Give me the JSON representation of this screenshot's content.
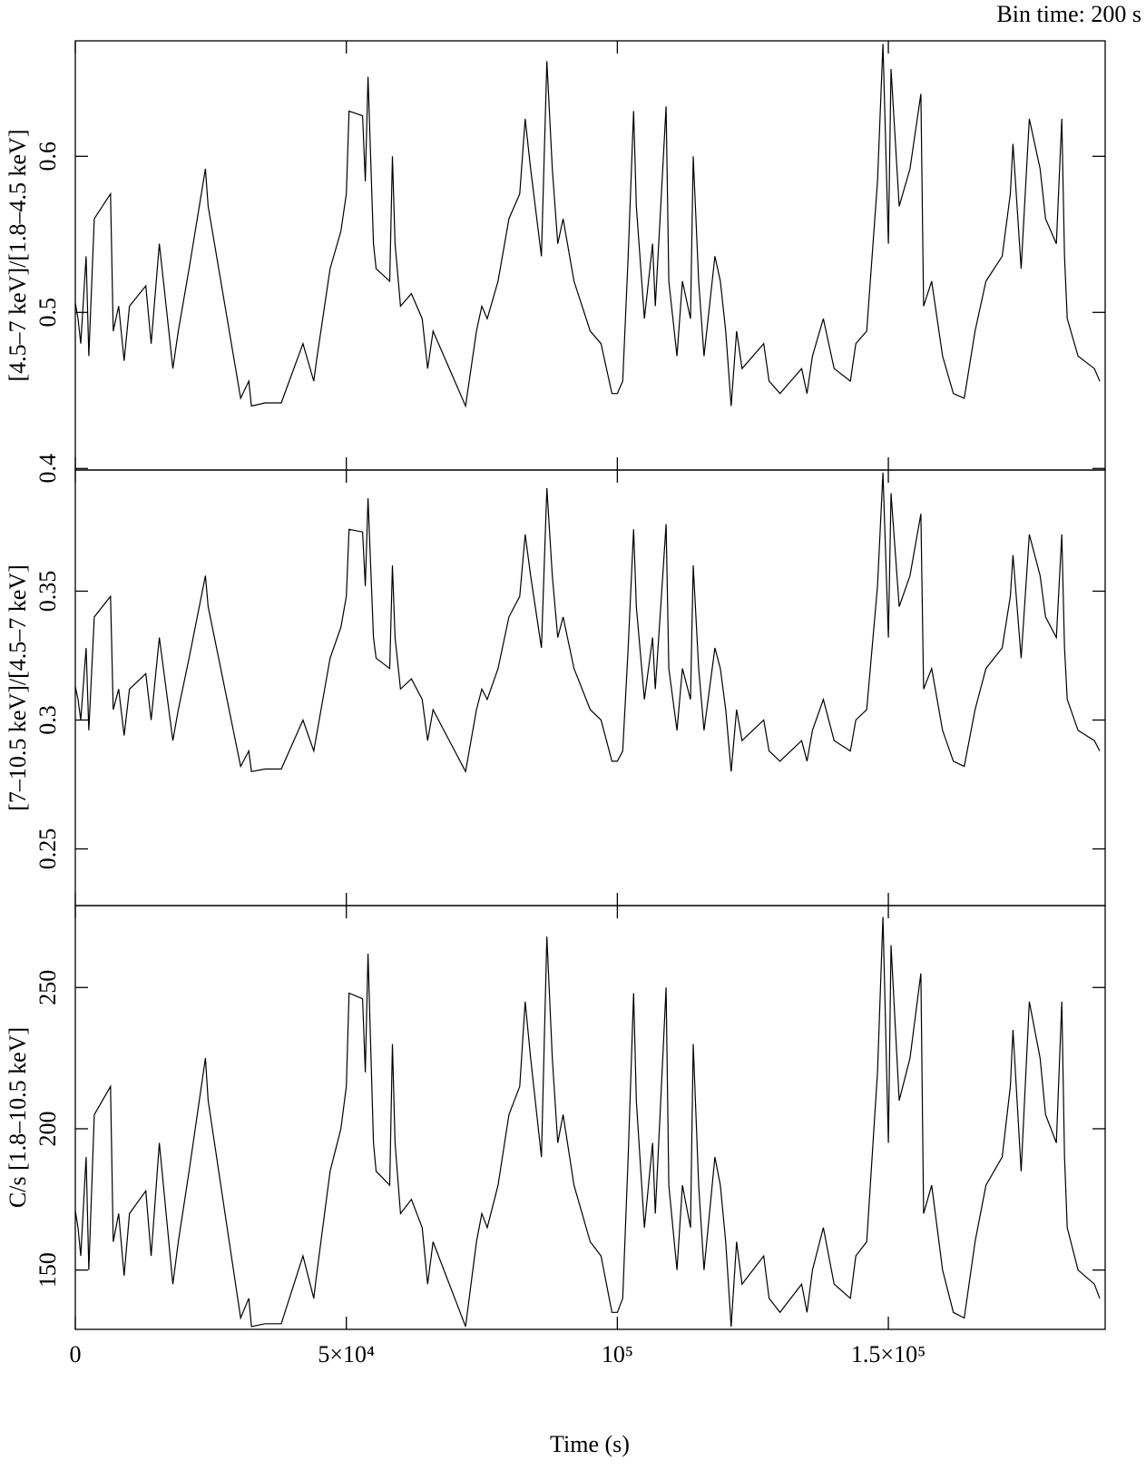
{
  "bin_time": "Bin time: 200 s",
  "chart_data": [
    {
      "type": "line",
      "ylabel": "[4.5–7 keV]/[1.8–4.5 keV]",
      "color": "#000000",
      "xlim": [
        0,
        190000
      ],
      "ylim": [
        0.399,
        0.674
      ],
      "yticks": [
        0.4,
        0.5,
        0.6
      ],
      "x": [
        0,
        500,
        1000,
        2000,
        2500,
        3500,
        6500,
        7000,
        8000,
        9000,
        10000,
        13000,
        14000,
        15500,
        16500,
        18000,
        19000,
        21000,
        24000,
        24500,
        30500,
        32000,
        32500,
        35000,
        38000,
        42000,
        44000,
        44500,
        47000,
        49000,
        50000,
        50500,
        53000,
        53500,
        54000,
        55000,
        55500,
        58000,
        58500,
        59000,
        60000,
        62000,
        64000,
        65000,
        66000,
        68000,
        70000,
        72000,
        74000,
        75000,
        76000,
        78000,
        80000,
        82000,
        83000,
        84000,
        86000,
        87000,
        88000,
        89000,
        90000,
        92000,
        95000,
        97000,
        99000,
        100000,
        101000,
        102000,
        103000,
        103500,
        105000,
        106500,
        107000,
        108000,
        109000,
        109500,
        111000,
        112000,
        113500,
        114000,
        115000,
        116000,
        118000,
        119000,
        120000,
        121000,
        122000,
        123000,
        127000,
        128000,
        130000,
        132000,
        134000,
        135000,
        136000,
        138000,
        140000,
        143000,
        144000,
        146000,
        148000,
        149000,
        150000,
        150500,
        152000,
        154000,
        156000,
        156500,
        158000,
        160000,
        162000,
        164000,
        166000,
        168000,
        171000,
        172500,
        173000,
        174500,
        176000,
        178000,
        179000,
        181000,
        182000,
        182500,
        183000,
        185000,
        188000,
        189000
      ],
      "values": [
        0.506,
        0.496,
        0.48,
        0.536,
        0.472,
        0.56,
        0.576,
        0.488,
        0.504,
        0.469,
        0.504,
        0.517,
        0.48,
        0.544,
        0.512,
        0.464,
        0.488,
        0.528,
        0.592,
        0.568,
        0.445,
        0.456,
        0.44,
        0.442,
        0.442,
        0.48,
        0.456,
        0.469,
        0.528,
        0.552,
        0.576,
        0.629,
        0.626,
        0.584,
        0.651,
        0.544,
        0.528,
        0.52,
        0.6,
        0.544,
        0.504,
        0.512,
        0.496,
        0.464,
        0.488,
        0.472,
        0.456,
        0.44,
        0.488,
        0.504,
        0.496,
        0.52,
        0.56,
        0.576,
        0.624,
        0.592,
        0.536,
        0.661,
        0.592,
        0.544,
        0.56,
        0.52,
        0.488,
        0.48,
        0.448,
        0.448,
        0.456,
        0.536,
        0.629,
        0.568,
        0.496,
        0.544,
        0.504,
        0.568,
        0.632,
        0.52,
        0.472,
        0.52,
        0.496,
        0.6,
        0.52,
        0.472,
        0.536,
        0.52,
        0.488,
        0.44,
        0.488,
        0.464,
        0.48,
        0.456,
        0.448,
        0.456,
        0.464,
        0.448,
        0.472,
        0.496,
        0.464,
        0.456,
        0.48,
        0.488,
        0.584,
        0.672,
        0.544,
        0.656,
        0.568,
        0.592,
        0.64,
        0.504,
        0.52,
        0.472,
        0.448,
        0.445,
        0.488,
        0.52,
        0.536,
        0.576,
        0.608,
        0.528,
        0.624,
        0.592,
        0.56,
        0.544,
        0.624,
        0.536,
        0.496,
        0.472,
        0.464,
        0.456
      ]
    },
    {
      "type": "line",
      "ylabel": "[7–10.5 keV]/[4.5–7 keV]",
      "color": "#000000",
      "xlim": [
        0,
        190000
      ],
      "ylim": [
        0.228,
        0.397
      ],
      "yticks": [
        0.25,
        0.3,
        0.35
      ],
      "x": [
        0,
        500,
        1000,
        2000,
        2500,
        3500,
        6500,
        7000,
        8000,
        9000,
        10000,
        13000,
        14000,
        15500,
        16500,
        18000,
        19000,
        21000,
        24000,
        24500,
        30500,
        32000,
        32500,
        35000,
        38000,
        42000,
        44000,
        44500,
        47000,
        49000,
        50000,
        50500,
        53000,
        53500,
        54000,
        55000,
        55500,
        58000,
        58500,
        59000,
        60000,
        62000,
        64000,
        65000,
        66000,
        68000,
        70000,
        72000,
        74000,
        75000,
        76000,
        78000,
        80000,
        82000,
        83000,
        84000,
        86000,
        87000,
        88000,
        89000,
        90000,
        92000,
        95000,
        97000,
        99000,
        100000,
        101000,
        102000,
        103000,
        103500,
        105000,
        106500,
        107000,
        108000,
        109000,
        109500,
        111000,
        112000,
        113500,
        114000,
        115000,
        116000,
        118000,
        119000,
        120000,
        121000,
        122000,
        123000,
        127000,
        128000,
        130000,
        132000,
        134000,
        135000,
        136000,
        138000,
        140000,
        143000,
        144000,
        146000,
        148000,
        149000,
        150000,
        150500,
        152000,
        154000,
        156000,
        156500,
        158000,
        160000,
        162000,
        164000,
        166000,
        168000,
        171000,
        172500,
        173000,
        174500,
        176000,
        178000,
        179000,
        181000,
        182000,
        182500,
        183000,
        185000,
        188000,
        189000
      ],
      "values": [
        0.313,
        0.308,
        0.3,
        0.328,
        0.296,
        0.34,
        0.348,
        0.304,
        0.312,
        0.294,
        0.312,
        0.318,
        0.3,
        0.332,
        0.316,
        0.292,
        0.304,
        0.324,
        0.356,
        0.344,
        0.282,
        0.288,
        0.28,
        0.281,
        0.281,
        0.3,
        0.288,
        0.294,
        0.324,
        0.336,
        0.348,
        0.374,
        0.373,
        0.352,
        0.386,
        0.332,
        0.324,
        0.32,
        0.36,
        0.332,
        0.312,
        0.316,
        0.308,
        0.292,
        0.304,
        0.296,
        0.288,
        0.28,
        0.304,
        0.312,
        0.308,
        0.32,
        0.34,
        0.348,
        0.372,
        0.356,
        0.328,
        0.39,
        0.356,
        0.332,
        0.34,
        0.32,
        0.304,
        0.3,
        0.284,
        0.284,
        0.288,
        0.328,
        0.374,
        0.344,
        0.308,
        0.332,
        0.312,
        0.344,
        0.376,
        0.32,
        0.296,
        0.32,
        0.308,
        0.36,
        0.32,
        0.296,
        0.328,
        0.32,
        0.304,
        0.28,
        0.304,
        0.292,
        0.3,
        0.288,
        0.284,
        0.288,
        0.292,
        0.284,
        0.296,
        0.308,
        0.292,
        0.288,
        0.3,
        0.304,
        0.352,
        0.396,
        0.332,
        0.388,
        0.344,
        0.356,
        0.38,
        0.312,
        0.32,
        0.296,
        0.284,
        0.282,
        0.304,
        0.32,
        0.328,
        0.348,
        0.364,
        0.324,
        0.372,
        0.356,
        0.34,
        0.332,
        0.372,
        0.328,
        0.308,
        0.296,
        0.292,
        0.288
      ]
    },
    {
      "type": "line",
      "ylabel": "C/s [1.8–10.5 keV]",
      "color": "#000000",
      "xlabel": "Time (s)",
      "xlim": [
        0,
        190000
      ],
      "ylim": [
        129,
        279
      ],
      "yticks": [
        150,
        200,
        250
      ],
      "xticks": [
        0,
        {
          "value": 50000,
          "label": "5×10⁴"
        },
        {
          "value": 100000,
          "label": "10⁵"
        },
        {
          "value": 150000,
          "label": "1.5×10⁵"
        }
      ],
      "x": [
        0,
        500,
        1000,
        2000,
        2500,
        3500,
        6500,
        7000,
        8000,
        9000,
        10000,
        13000,
        14000,
        15500,
        16500,
        18000,
        19000,
        21000,
        24000,
        24500,
        30500,
        32000,
        32500,
        35000,
        38000,
        42000,
        44000,
        44500,
        47000,
        49000,
        50000,
        50500,
        53000,
        53500,
        54000,
        55000,
        55500,
        58000,
        58500,
        59000,
        60000,
        62000,
        64000,
        65000,
        66000,
        68000,
        70000,
        72000,
        74000,
        75000,
        76000,
        78000,
        80000,
        82000,
        83000,
        84000,
        86000,
        87000,
        88000,
        89000,
        90000,
        92000,
        95000,
        97000,
        99000,
        100000,
        101000,
        102000,
        103000,
        103500,
        105000,
        106500,
        107000,
        108000,
        109000,
        109500,
        111000,
        112000,
        113500,
        114000,
        115000,
        116000,
        118000,
        119000,
        120000,
        121000,
        122000,
        123000,
        127000,
        128000,
        130000,
        132000,
        134000,
        135000,
        136000,
        138000,
        140000,
        143000,
        144000,
        146000,
        148000,
        149000,
        150000,
        150500,
        152000,
        154000,
        156000,
        156500,
        158000,
        160000,
        162000,
        164000,
        166000,
        168000,
        171000,
        172500,
        173000,
        174500,
        176000,
        178000,
        179000,
        181000,
        182000,
        182500,
        183000,
        185000,
        188000,
        189000
      ],
      "values": [
        171,
        165,
        155,
        190,
        150,
        205,
        215,
        160,
        170,
        148,
        170,
        178,
        155,
        195,
        175,
        145,
        160,
        185,
        225,
        210,
        133,
        140,
        130,
        131,
        131,
        155,
        140,
        148,
        185,
        200,
        215,
        248,
        246,
        220,
        262,
        195,
        185,
        180,
        230,
        195,
        170,
        175,
        165,
        145,
        160,
        150,
        140,
        130,
        160,
        170,
        165,
        180,
        205,
        215,
        245,
        225,
        190,
        268,
        225,
        195,
        205,
        180,
        160,
        155,
        135,
        135,
        140,
        190,
        248,
        210,
        165,
        195,
        170,
        210,
        250,
        180,
        150,
        180,
        165,
        230,
        180,
        150,
        190,
        180,
        160,
        130,
        160,
        145,
        155,
        140,
        135,
        140,
        145,
        135,
        150,
        165,
        145,
        140,
        155,
        160,
        220,
        275,
        195,
        265,
        210,
        225,
        255,
        170,
        180,
        150,
        135,
        133,
        160,
        180,
        190,
        215,
        235,
        185,
        245,
        225,
        205,
        195,
        245,
        190,
        165,
        150,
        145,
        140
      ]
    }
  ]
}
